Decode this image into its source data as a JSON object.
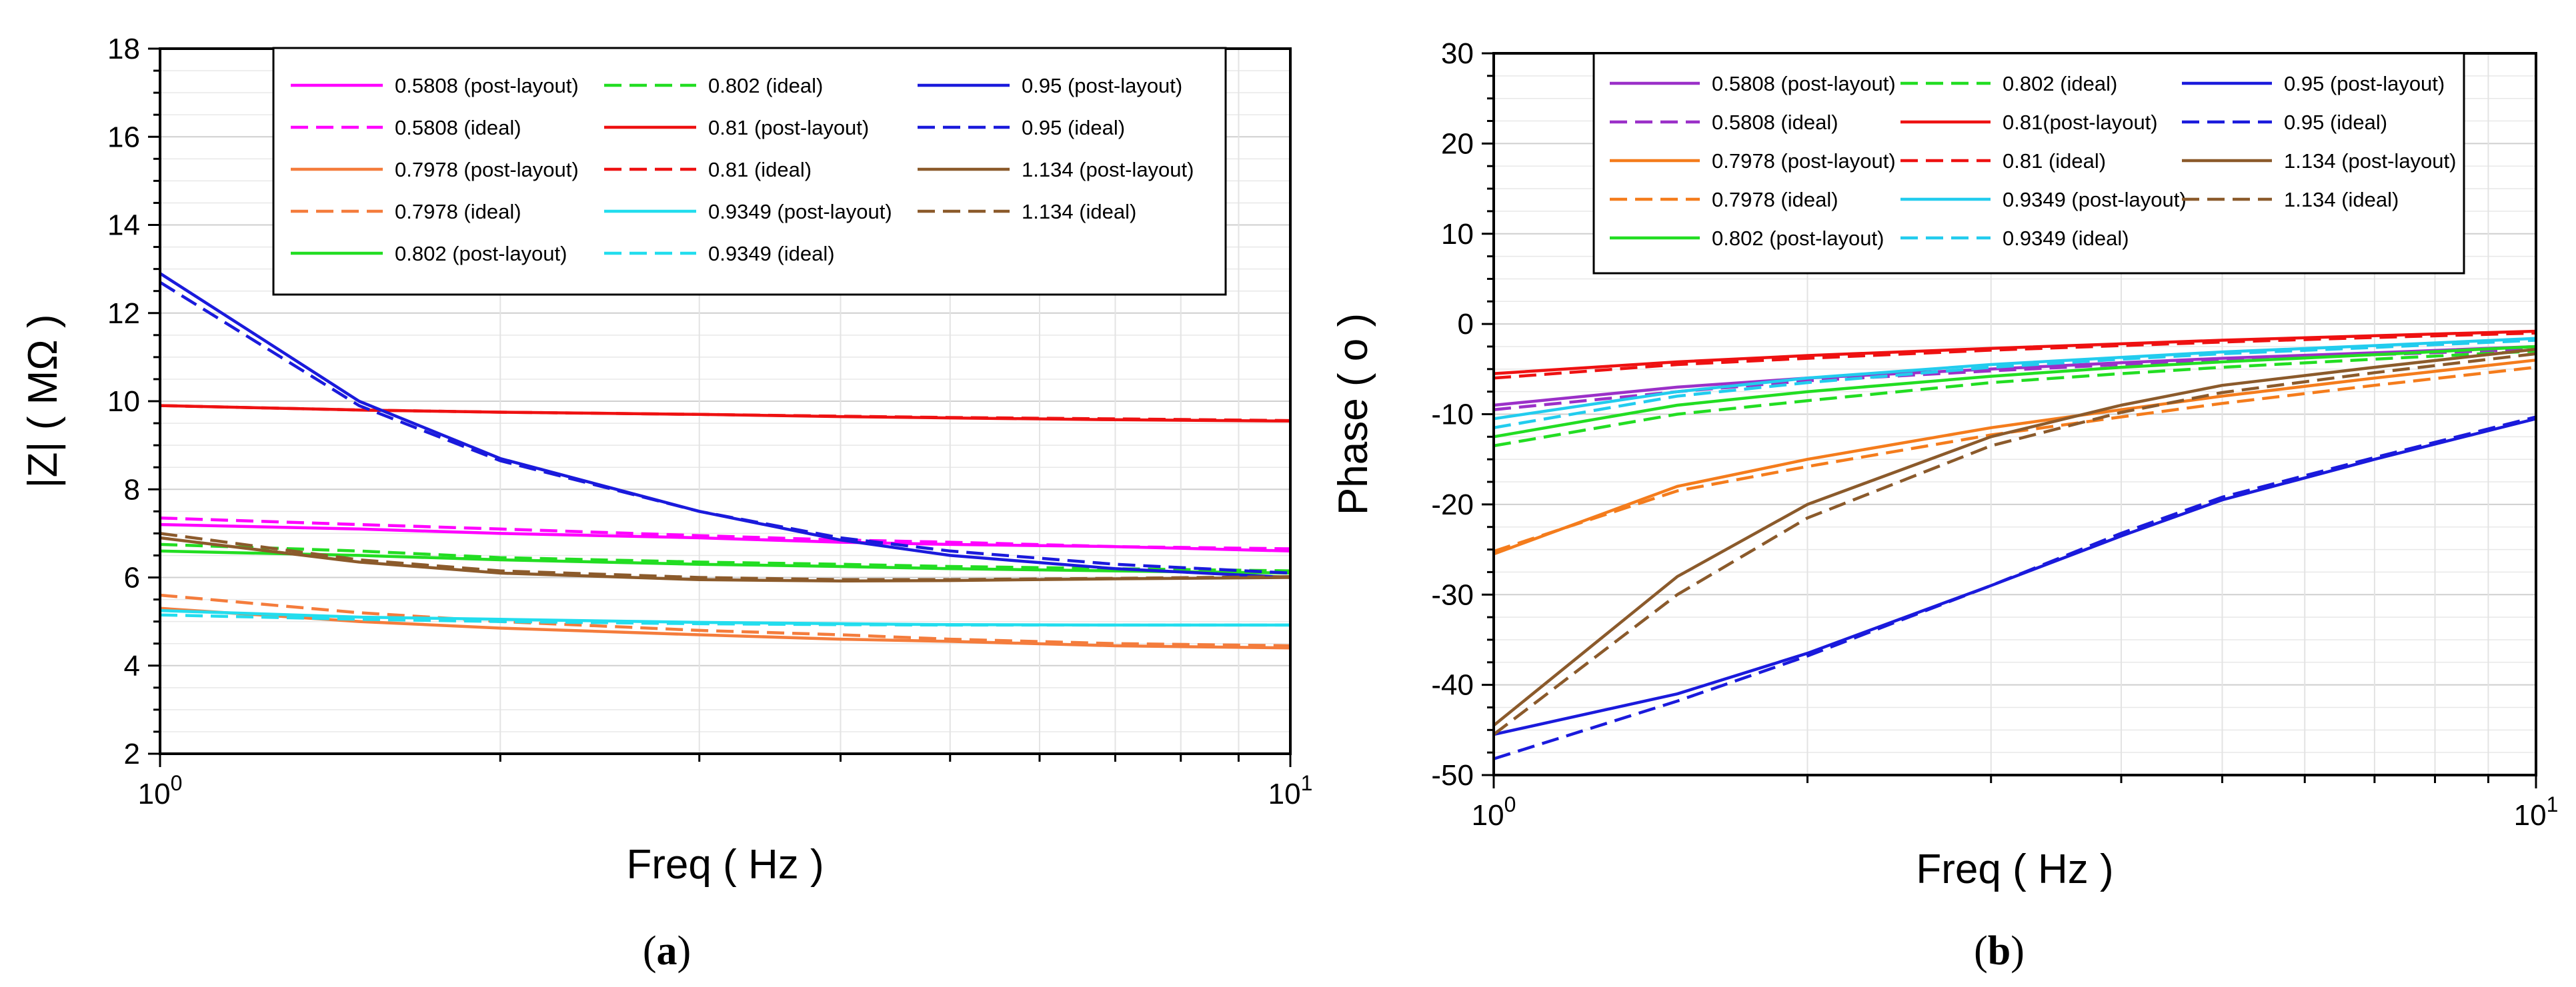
{
  "captions": [
    "(a)",
    "(b)"
  ],
  "caption_letters": [
    "a",
    "b"
  ],
  "chart_data": [
    {
      "type": "line",
      "panel": "(a)",
      "xlabel": "Freq ( Hz )",
      "ylabel": "|Z| ( MΩ )",
      "xscale": "log",
      "xlim": [
        1,
        10
      ],
      "ylim": [
        2,
        18
      ],
      "yticks": [
        2,
        4,
        6,
        8,
        10,
        12,
        14,
        16,
        18
      ],
      "xtick_labels": [
        {
          "base": "10",
          "exp": "0"
        },
        {
          "base": "10",
          "exp": "1"
        }
      ],
      "grid": true,
      "legend_position": "top",
      "legend": [
        "0.5808 (post-layout)",
        "0.5808 (ideal)",
        "0.7978 (post-layout)",
        "0.7978 (ideal)",
        "0.802 (post-layout)",
        "0.802 (ideal)",
        "0.81 (post-layout)",
        "0.81 (ideal)",
        "0.9349 (post-layout)",
        "0.9349 (ideal)",
        "0.95 (post-layout)",
        "0.95 (ideal)",
        "1.134 (post-layout)",
        "1.134 (ideal)"
      ],
      "x": [
        1,
        1.5,
        2,
        3,
        4,
        5,
        7,
        10
      ],
      "series": [
        {
          "name": "0.5808 (post-layout)",
          "color": "#ff00ff",
          "dash": false,
          "values": [
            7.2,
            7.1,
            7.0,
            6.9,
            6.8,
            6.75,
            6.7,
            6.6
          ]
        },
        {
          "name": "0.5808 (ideal)",
          "color": "#ff00ff",
          "dash": true,
          "values": [
            7.35,
            7.2,
            7.1,
            6.95,
            6.85,
            6.8,
            6.7,
            6.65
          ]
        },
        {
          "name": "0.7978 (post-layout)",
          "color": "#f47c3c",
          "dash": false,
          "values": [
            5.3,
            5.0,
            4.85,
            4.7,
            4.6,
            4.55,
            4.45,
            4.4
          ]
        },
        {
          "name": "0.7978 (ideal)",
          "color": "#f47c3c",
          "dash": true,
          "values": [
            5.6,
            5.2,
            5.0,
            4.8,
            4.7,
            4.6,
            4.5,
            4.45
          ]
        },
        {
          "name": "0.802 (post-layout)",
          "color": "#22dd22",
          "dash": false,
          "values": [
            6.6,
            6.5,
            6.4,
            6.3,
            6.25,
            6.2,
            6.15,
            6.1
          ]
        },
        {
          "name": "0.802 (ideal)",
          "color": "#22dd22",
          "dash": true,
          "values": [
            6.75,
            6.6,
            6.45,
            6.35,
            6.3,
            6.25,
            6.2,
            6.15
          ]
        },
        {
          "name": "0.81 (post-layout)",
          "color": "#ee1111",
          "dash": false,
          "values": [
            9.9,
            9.8,
            9.75,
            9.7,
            9.65,
            9.62,
            9.58,
            9.55
          ]
        },
        {
          "name": "0.81 (ideal)",
          "color": "#ee1111",
          "dash": true,
          "values": [
            9.9,
            9.8,
            9.75,
            9.7,
            9.66,
            9.63,
            9.6,
            9.56
          ]
        },
        {
          "name": "0.9349 (post-layout)",
          "color": "#22ddee",
          "dash": false,
          "values": [
            5.25,
            5.1,
            5.05,
            4.98,
            4.95,
            4.93,
            4.92,
            4.92
          ]
        },
        {
          "name": "0.9349 (ideal)",
          "color": "#22ddee",
          "dash": true,
          "values": [
            5.15,
            5.05,
            5.0,
            4.95,
            4.93,
            4.92,
            4.92,
            4.92
          ]
        },
        {
          "name": "0.95 (post-layout)",
          "color": "#1a1adc",
          "dash": false,
          "values": [
            12.9,
            10.0,
            8.7,
            7.5,
            6.85,
            6.5,
            6.2,
            6.0
          ]
        },
        {
          "name": "0.95 (ideal)",
          "color": "#1a1adc",
          "dash": true,
          "values": [
            12.7,
            9.9,
            8.65,
            7.5,
            6.9,
            6.6,
            6.3,
            6.1
          ]
        },
        {
          "name": "1.134 (post-layout)",
          "color": "#8b5a2b",
          "dash": false,
          "values": [
            6.9,
            6.35,
            6.1,
            5.95,
            5.92,
            5.93,
            5.97,
            6.0
          ]
        },
        {
          "name": "1.134 (ideal)",
          "color": "#8b5a2b",
          "dash": true,
          "values": [
            7.0,
            6.4,
            6.15,
            6.0,
            5.95,
            5.95,
            5.98,
            6.02
          ]
        }
      ]
    },
    {
      "type": "line",
      "panel": "(b)",
      "xlabel": "Freq ( Hz )",
      "ylabel": "Phase ( o )",
      "xscale": "log",
      "xlim": [
        1,
        10
      ],
      "ylim": [
        -50,
        30
      ],
      "yticks": [
        -50,
        -40,
        -30,
        -20,
        -10,
        0,
        10,
        20,
        30
      ],
      "xtick_labels": [
        {
          "base": "10",
          "exp": "0"
        },
        {
          "base": "10",
          "exp": "1"
        }
      ],
      "grid": true,
      "legend_position": "top",
      "legend": [
        "0.5808 (post-layout)",
        "0.5808 (ideal)",
        "0.7978 (post-layout)",
        "0.7978 (ideal)",
        "0.802 (post-layout)",
        "0.802 (ideal)",
        "0.81(post-layout)",
        "0.81 (ideal)",
        "0.9349 (post-layout)",
        "0.9349 (ideal)",
        "0.95 (post-layout)",
        "0.95 (ideal)",
        "1.134 (post-layout)",
        "1.134 (ideal)"
      ],
      "x": [
        1,
        1.5,
        2,
        3,
        4,
        5,
        7,
        10
      ],
      "series": [
        {
          "name": "0.5808 (post-layout)",
          "color": "#9b30c8",
          "dash": false,
          "values": [
            -9,
            -7,
            -6,
            -5,
            -4.3,
            -3.8,
            -3.2,
            -2.5
          ]
        },
        {
          "name": "0.5808 (ideal)",
          "color": "#9b30c8",
          "dash": true,
          "values": [
            -9.5,
            -7.5,
            -6.3,
            -5.2,
            -4.5,
            -4.0,
            -3.4,
            -2.8
          ]
        },
        {
          "name": "0.7978 (post-layout)",
          "color": "#f47c1c",
          "dash": false,
          "values": [
            -25.5,
            -18,
            -15,
            -11.5,
            -9.5,
            -8,
            -6,
            -4
          ]
        },
        {
          "name": "0.7978 (ideal)",
          "color": "#f47c1c",
          "dash": true,
          "values": [
            -25.2,
            -18.5,
            -15.8,
            -12.3,
            -10.3,
            -8.8,
            -6.8,
            -4.8
          ]
        },
        {
          "name": "0.802 (post-layout)",
          "color": "#22dd22",
          "dash": false,
          "values": [
            -12.5,
            -9,
            -7.5,
            -5.8,
            -4.8,
            -4.2,
            -3.4,
            -2.5
          ]
        },
        {
          "name": "0.802 (ideal)",
          "color": "#22dd22",
          "dash": true,
          "values": [
            -13.5,
            -10,
            -8.5,
            -6.5,
            -5.5,
            -4.8,
            -3.9,
            -3.0
          ]
        },
        {
          "name": "0.81(post-layout)",
          "color": "#ee1111",
          "dash": false,
          "values": [
            -5.5,
            -4.2,
            -3.5,
            -2.7,
            -2.2,
            -1.8,
            -1.3,
            -0.8
          ]
        },
        {
          "name": "0.81 (ideal)",
          "color": "#ee1111",
          "dash": true,
          "values": [
            -6,
            -4.5,
            -3.8,
            -2.9,
            -2.4,
            -2.0,
            -1.5,
            -1.0
          ]
        },
        {
          "name": "0.9349 (post-layout)",
          "color": "#22ccee",
          "dash": false,
          "values": [
            -10.5,
            -7.5,
            -6,
            -4.5,
            -3.7,
            -3.1,
            -2.4,
            -1.6
          ]
        },
        {
          "name": "0.9349 (ideal)",
          "color": "#22ccee",
          "dash": true,
          "values": [
            -11.5,
            -8,
            -6.5,
            -4.8,
            -3.9,
            -3.3,
            -2.6,
            -1.8
          ]
        },
        {
          "name": "0.95 (post-layout)",
          "color": "#1a1adc",
          "dash": false,
          "values": [
            -45.5,
            -41,
            -36.5,
            -29,
            -23.5,
            -19.5,
            -15,
            -10.5
          ]
        },
        {
          "name": "0.95 (ideal)",
          "color": "#1a1adc",
          "dash": true,
          "values": [
            -48.2,
            -41.8,
            -36.8,
            -29,
            -23.2,
            -19.2,
            -14.8,
            -10.3
          ]
        },
        {
          "name": "1.134 (post-layout)",
          "color": "#8b5a2b",
          "dash": false,
          "values": [
            -44.5,
            -28,
            -20,
            -12.5,
            -9,
            -6.8,
            -4.8,
            -2.8
          ]
        },
        {
          "name": "1.134 (ideal)",
          "color": "#8b5a2b",
          "dash": true,
          "values": [
            -45.5,
            -30,
            -21.5,
            -13.5,
            -9.8,
            -7.6,
            -5.4,
            -3.3
          ]
        }
      ]
    }
  ]
}
